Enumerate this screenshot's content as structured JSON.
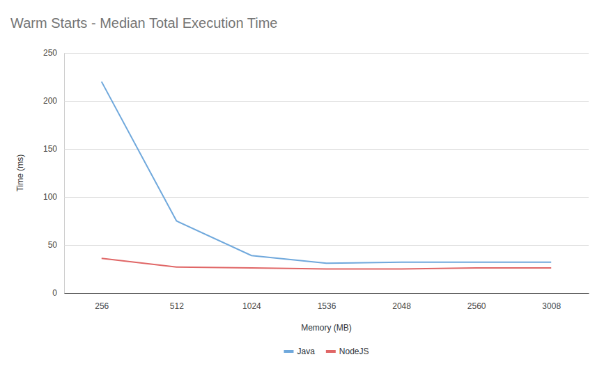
{
  "chart_data": {
    "type": "line",
    "title": "Warm Starts - Median Total Execution Time",
    "x_label": "Memory (MB)",
    "y_label": "Time (ms)",
    "categories": [
      "256",
      "512",
      "1024",
      "1536",
      "2048",
      "2560",
      "3008"
    ],
    "series": [
      {
        "name": "Java",
        "color": "#6fa8dc",
        "values": [
          220,
          75,
          39,
          31,
          32,
          32,
          32
        ]
      },
      {
        "name": "NodeJS",
        "color": "#e06666",
        "values": [
          36,
          27,
          26,
          25,
          25,
          26,
          26
        ]
      }
    ],
    "ylim": [
      0,
      250
    ],
    "yticks": [
      0,
      50,
      100,
      150,
      200,
      250
    ],
    "grid": true,
    "legend": "bottom"
  }
}
